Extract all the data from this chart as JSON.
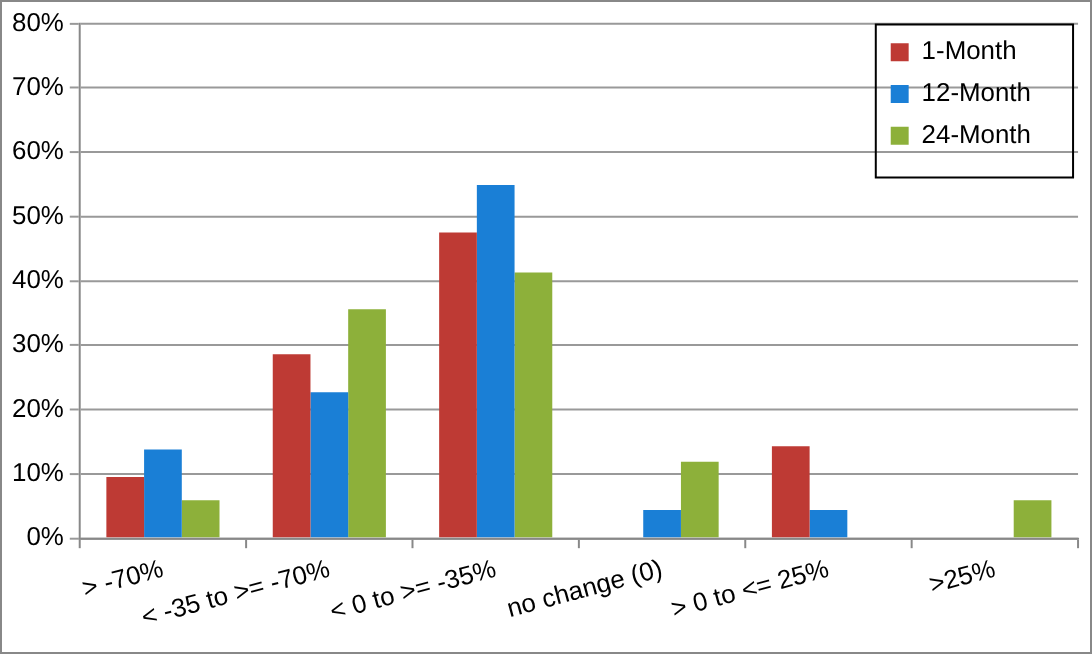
{
  "chart_data": {
    "type": "bar",
    "categories": [
      "> -70%",
      "< -35 to >= -70%",
      "< 0 to >= -35%",
      "no change (0)",
      "> 0 to <= 25%",
      ">25%"
    ],
    "series": [
      {
        "name": "1-Month",
        "color": "#be3a34",
        "values": [
          9.5,
          28.6,
          47.5,
          0,
          14.3,
          0
        ]
      },
      {
        "name": "12-Month",
        "color": "#1a7fd6",
        "values": [
          13.8,
          22.7,
          54.9,
          4.4,
          4.4,
          0
        ]
      },
      {
        "name": "24-Month",
        "color": "#8db03a",
        "values": [
          5.9,
          35.6,
          41.3,
          11.9,
          0,
          5.9
        ]
      }
    ],
    "ylim": [
      0,
      80
    ],
    "yticks": [
      {
        "value": 0,
        "label": "0%"
      },
      {
        "value": 10,
        "label": "10%"
      },
      {
        "value": 20,
        "label": "20%"
      },
      {
        "value": 30,
        "label": "30%"
      },
      {
        "value": 40,
        "label": "40%"
      },
      {
        "value": 50,
        "label": "50%"
      },
      {
        "value": 60,
        "label": "60%"
      },
      {
        "value": 70,
        "label": "70%"
      },
      {
        "value": 80,
        "label": "80%"
      }
    ],
    "grid": "y",
    "legend": "top right"
  }
}
